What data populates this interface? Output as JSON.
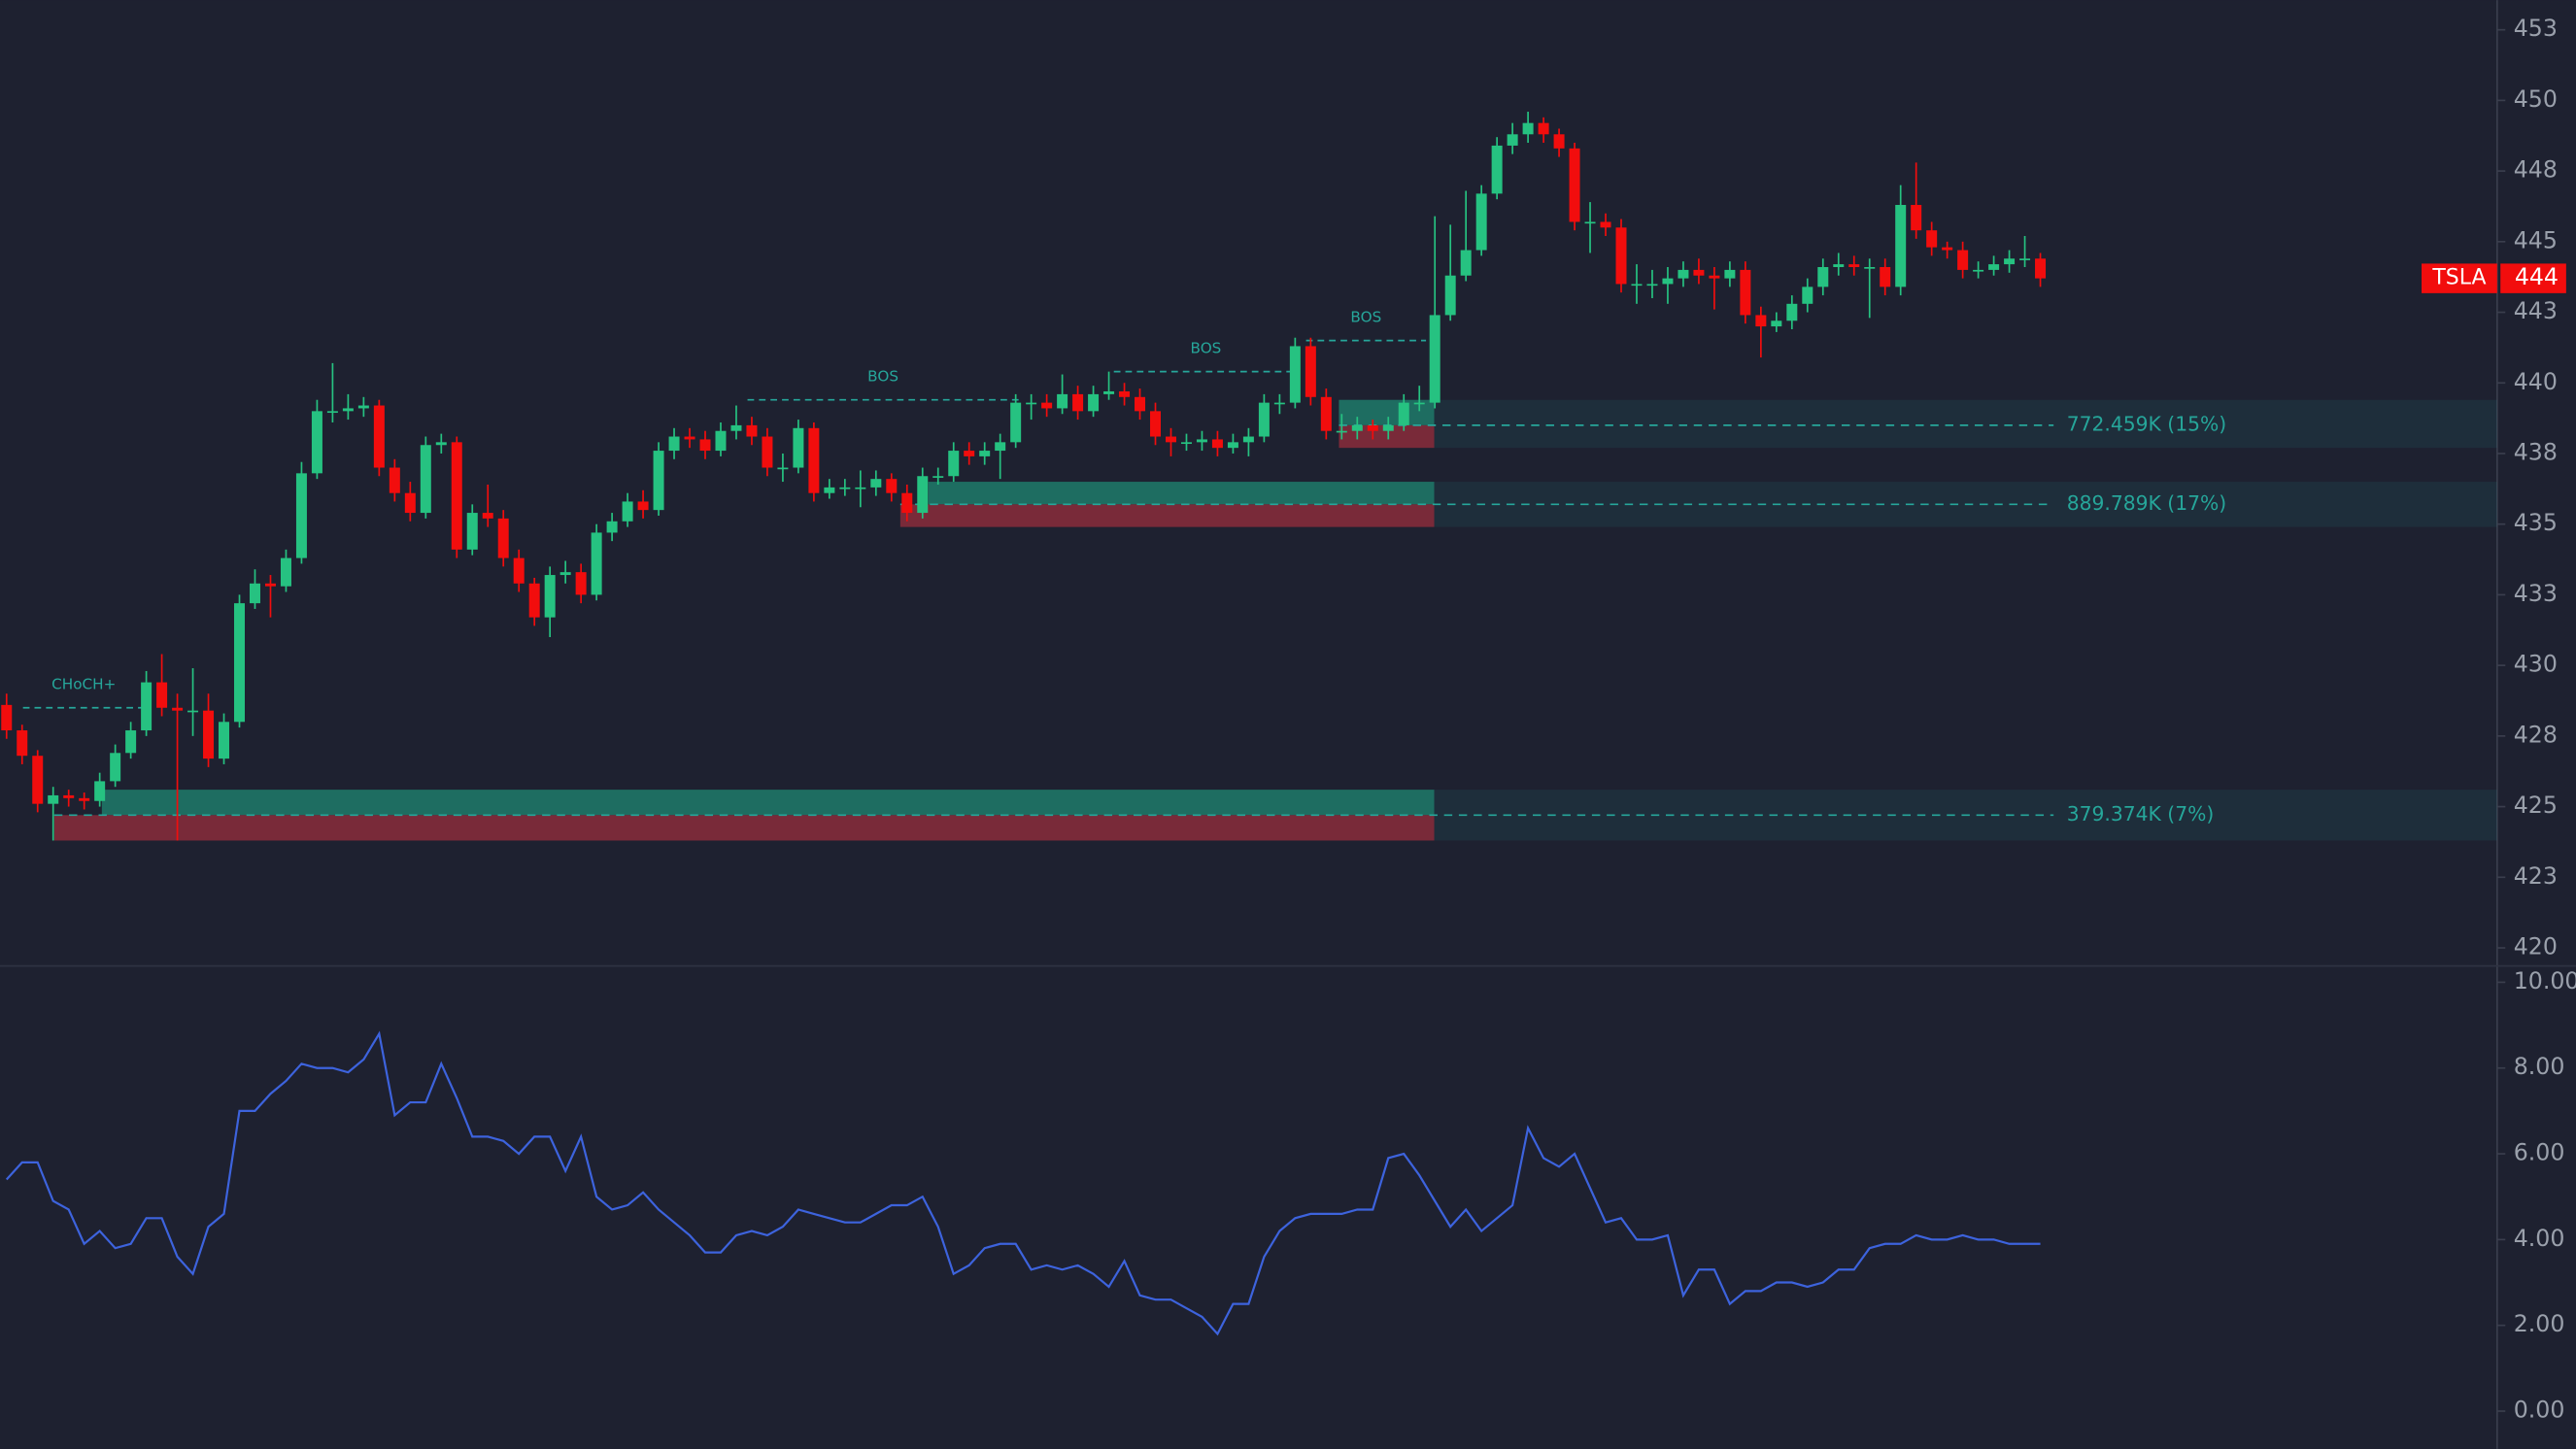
{
  "chart_data": {
    "type": "candlestick",
    "ticker": "TSLA",
    "last": {
      "value": 443.7,
      "label": "444"
    },
    "up_color": "#26c281",
    "down_color": "#f20d0d",
    "ylim": [
      419.36,
      453.55
    ],
    "yticks": [
      {
        "value": 452.5,
        "label": "453"
      },
      450,
      {
        "value": 447.5,
        "label": "448"
      },
      445,
      {
        "value": 442.5,
        "label": "443"
      },
      440,
      {
        "value": 437.5,
        "label": "438"
      },
      435,
      {
        "value": 432.5,
        "label": "433"
      },
      430,
      {
        "value": 427.5,
        "label": "428"
      },
      425,
      {
        "value": 422.5,
        "label": "423"
      },
      420
    ],
    "candles": [
      [
        428.6,
        429.0,
        427.4,
        427.7
      ],
      [
        427.7,
        427.9,
        426.5,
        426.8
      ],
      [
        426.8,
        427.0,
        424.8,
        425.1
      ],
      [
        425.1,
        425.7,
        423.8,
        425.4
      ],
      [
        425.4,
        425.6,
        425.0,
        425.3
      ],
      [
        425.3,
        425.5,
        424.9,
        425.2
      ],
      [
        425.2,
        426.2,
        425.0,
        425.9
      ],
      [
        425.9,
        427.2,
        425.7,
        426.9
      ],
      [
        426.9,
        428.0,
        426.7,
        427.7
      ],
      [
        427.7,
        429.8,
        427.5,
        429.4
      ],
      [
        429.4,
        430.4,
        428.2,
        428.5
      ],
      [
        428.5,
        429.0,
        423.8,
        428.4
      ],
      [
        428.4,
        429.9,
        427.5,
        428.4
      ],
      [
        428.4,
        429.0,
        426.4,
        426.7
      ],
      [
        426.7,
        428.3,
        426.5,
        428.0
      ],
      [
        428.0,
        432.5,
        427.8,
        432.2
      ],
      [
        432.2,
        433.4,
        432.0,
        432.9
      ],
      [
        432.9,
        433.2,
        431.7,
        432.8
      ],
      [
        432.8,
        434.1,
        432.6,
        433.8
      ],
      [
        433.8,
        437.2,
        433.6,
        436.8
      ],
      [
        436.8,
        439.4,
        436.6,
        439.0
      ],
      [
        439.0,
        440.7,
        438.6,
        439.0
      ],
      [
        439.0,
        439.6,
        438.7,
        439.1
      ],
      [
        439.1,
        439.5,
        438.8,
        439.2
      ],
      [
        439.2,
        439.4,
        436.7,
        437.0
      ],
      [
        437.0,
        437.3,
        435.8,
        436.1
      ],
      [
        436.1,
        436.5,
        435.1,
        435.4
      ],
      [
        435.4,
        438.1,
        435.2,
        437.8
      ],
      [
        437.8,
        438.2,
        437.5,
        437.9
      ],
      [
        437.9,
        438.1,
        433.8,
        434.1
      ],
      [
        434.1,
        435.7,
        433.9,
        435.4
      ],
      [
        435.4,
        436.4,
        434.9,
        435.2
      ],
      [
        435.2,
        435.5,
        433.5,
        433.8
      ],
      [
        433.8,
        434.1,
        432.6,
        432.9
      ],
      [
        432.9,
        433.1,
        431.4,
        431.7
      ],
      [
        431.7,
        433.5,
        431.0,
        433.2
      ],
      [
        433.2,
        433.7,
        432.9,
        433.3
      ],
      [
        433.3,
        433.6,
        432.2,
        432.5
      ],
      [
        432.5,
        435.0,
        432.3,
        434.7
      ],
      [
        434.7,
        435.4,
        434.4,
        435.1
      ],
      [
        435.1,
        436.1,
        434.9,
        435.8
      ],
      [
        435.8,
        436.2,
        435.2,
        435.5
      ],
      [
        435.5,
        437.9,
        435.3,
        437.6
      ],
      [
        437.6,
        438.4,
        437.3,
        438.1
      ],
      [
        438.1,
        438.4,
        437.7,
        438.0
      ],
      [
        438.0,
        438.3,
        437.3,
        437.6
      ],
      [
        437.6,
        438.6,
        437.4,
        438.3
      ],
      [
        438.3,
        439.2,
        438.0,
        438.5
      ],
      [
        438.5,
        438.8,
        437.8,
        438.1
      ],
      [
        438.1,
        438.4,
        436.7,
        437.0
      ],
      [
        437.0,
        437.5,
        436.5,
        437.0
      ],
      [
        437.0,
        438.7,
        436.8,
        438.4
      ],
      [
        438.4,
        438.6,
        435.8,
        436.1
      ],
      [
        436.1,
        436.6,
        435.9,
        436.3
      ],
      [
        436.3,
        436.6,
        436.0,
        436.3
      ],
      [
        436.3,
        436.9,
        435.6,
        436.3
      ],
      [
        436.3,
        436.9,
        436.0,
        436.6
      ],
      [
        436.6,
        436.8,
        435.8,
        436.1
      ],
      [
        436.1,
        436.4,
        435.1,
        435.4
      ],
      [
        435.4,
        437.0,
        435.2,
        436.7
      ],
      [
        436.7,
        437.0,
        436.4,
        436.7
      ],
      [
        436.7,
        437.9,
        436.5,
        437.6
      ],
      [
        437.6,
        437.9,
        437.1,
        437.4
      ],
      [
        437.4,
        437.9,
        437.1,
        437.6
      ],
      [
        437.6,
        438.2,
        436.6,
        437.9
      ],
      [
        437.9,
        439.6,
        437.7,
        439.3
      ],
      [
        439.3,
        439.6,
        438.7,
        439.3
      ],
      [
        439.3,
        439.6,
        438.8,
        439.1
      ],
      [
        439.1,
        440.3,
        438.9,
        439.6
      ],
      [
        439.6,
        439.9,
        438.7,
        439.0
      ],
      [
        439.0,
        439.9,
        438.8,
        439.6
      ],
      [
        439.6,
        440.4,
        439.4,
        439.7
      ],
      [
        439.7,
        440.0,
        439.2,
        439.5
      ],
      [
        439.5,
        439.8,
        438.7,
        439.0
      ],
      [
        439.0,
        439.3,
        437.8,
        438.1
      ],
      [
        438.1,
        438.4,
        437.4,
        437.9
      ],
      [
        437.9,
        438.2,
        437.6,
        437.9
      ],
      [
        437.9,
        438.3,
        437.6,
        438.0
      ],
      [
        438.0,
        438.3,
        437.4,
        437.7
      ],
      [
        437.7,
        438.2,
        437.5,
        437.9
      ],
      [
        437.9,
        438.4,
        437.4,
        438.1
      ],
      [
        438.1,
        439.6,
        437.9,
        439.3
      ],
      [
        439.3,
        439.6,
        438.9,
        439.3
      ],
      [
        439.3,
        441.6,
        439.1,
        441.3
      ],
      [
        441.3,
        441.6,
        439.2,
        439.5
      ],
      [
        439.5,
        439.8,
        438.0,
        438.3
      ],
      [
        438.3,
        438.9,
        438.0,
        438.3
      ],
      [
        438.3,
        438.8,
        438.0,
        438.5
      ],
      [
        438.5,
        438.7,
        438.0,
        438.3
      ],
      [
        438.3,
        438.8,
        438.0,
        438.5
      ],
      [
        438.5,
        439.6,
        438.3,
        439.3
      ],
      [
        439.3,
        439.9,
        439.0,
        439.3
      ],
      [
        439.3,
        445.9,
        439.1,
        442.4
      ],
      [
        442.4,
        445.6,
        442.2,
        443.8
      ],
      [
        443.8,
        446.8,
        443.6,
        444.7
      ],
      [
        444.7,
        447.0,
        444.5,
        446.7
      ],
      [
        446.7,
        448.7,
        446.5,
        448.4
      ],
      [
        448.4,
        449.2,
        448.1,
        448.8
      ],
      [
        448.8,
        449.6,
        448.5,
        449.2
      ],
      [
        449.2,
        449.4,
        448.5,
        448.8
      ],
      [
        448.8,
        449.0,
        448.0,
        448.3
      ],
      [
        448.3,
        448.5,
        445.4,
        445.7
      ],
      [
        445.7,
        446.4,
        444.6,
        445.7
      ],
      [
        445.7,
        446.0,
        445.2,
        445.5
      ],
      [
        445.5,
        445.8,
        443.2,
        443.5
      ],
      [
        443.5,
        444.2,
        442.8,
        443.5
      ],
      [
        443.5,
        444.0,
        443.0,
        443.5
      ],
      [
        443.5,
        444.1,
        442.8,
        443.7
      ],
      [
        443.7,
        444.3,
        443.4,
        444.0
      ],
      [
        444.0,
        444.4,
        443.5,
        443.8
      ],
      [
        443.8,
        444.1,
        442.6,
        443.7
      ],
      [
        443.7,
        444.3,
        443.4,
        444.0
      ],
      [
        444.0,
        444.3,
        442.1,
        442.4
      ],
      [
        442.4,
        442.7,
        440.9,
        442.0
      ],
      [
        442.0,
        442.5,
        441.8,
        442.2
      ],
      [
        442.2,
        443.1,
        441.9,
        442.8
      ],
      [
        442.8,
        443.7,
        442.5,
        443.4
      ],
      [
        443.4,
        444.4,
        443.1,
        444.1
      ],
      [
        444.1,
        444.6,
        443.8,
        444.2
      ],
      [
        444.2,
        444.5,
        443.8,
        444.1
      ],
      [
        444.1,
        444.4,
        442.3,
        444.1
      ],
      [
        444.1,
        444.4,
        443.1,
        443.4
      ],
      [
        443.4,
        447.0,
        443.1,
        446.3
      ],
      [
        446.3,
        447.8,
        445.1,
        445.4
      ],
      [
        445.4,
        445.7,
        444.5,
        444.8
      ],
      [
        444.8,
        445.0,
        444.4,
        444.7
      ],
      [
        444.7,
        445.0,
        443.7,
        444.0
      ],
      [
        444.0,
        444.3,
        443.7,
        444.0
      ],
      [
        444.0,
        444.5,
        443.8,
        444.2
      ],
      [
        444.2,
        444.7,
        443.9,
        444.4
      ],
      [
        444.4,
        445.2,
        444.1,
        444.4
      ],
      [
        444.4,
        444.6,
        443.4,
        443.7
      ]
    ],
    "zones": [
      {
        "label": "772.459K (15%)",
        "top": 439.4,
        "mid": 438.5,
        "bottom": 437.7
      },
      {
        "label": "889.789K (17%)",
        "top": 436.5,
        "mid": 435.7,
        "bottom": 434.9
      },
      {
        "label": "379.374K (7%)",
        "top": 425.6,
        "mid": 424.7,
        "bottom": 423.8
      }
    ],
    "structures": [
      {
        "label": "CHoCH+",
        "value": 428.5
      },
      {
        "label": "BOS",
        "value": 439.4
      },
      {
        "label": "BOS",
        "value": 440.4
      },
      {
        "label": "BOS",
        "value": 441.5
      }
    ],
    "indicator": {
      "type": "line",
      "color": "#3d63dd",
      "ylim": [
        -0.88,
        10.38
      ],
      "yticks": [
        {
          "value": 10,
          "label": "10.00"
        },
        {
          "value": 8,
          "label": "8.00"
        },
        {
          "value": 6,
          "label": "6.00"
        },
        {
          "value": 4,
          "label": "4.00"
        },
        {
          "value": 2,
          "label": "2.00"
        },
        {
          "value": 0,
          "label": "0.00"
        }
      ],
      "values": [
        5.4,
        5.8,
        5.8,
        4.9,
        4.7,
        3.9,
        4.2,
        3.8,
        3.9,
        4.5,
        4.5,
        3.6,
        3.2,
        4.3,
        4.6,
        7.0,
        7.0,
        7.4,
        7.7,
        8.1,
        8.0,
        8.0,
        7.9,
        8.2,
        8.8,
        6.9,
        7.2,
        7.2,
        8.1,
        7.3,
        6.4,
        6.4,
        6.3,
        6.0,
        6.4,
        6.4,
        5.6,
        6.4,
        5.0,
        4.7,
        4.8,
        5.1,
        4.7,
        4.4,
        4.1,
        3.7,
        3.7,
        4.1,
        4.2,
        4.1,
        4.3,
        4.7,
        4.6,
        4.5,
        4.4,
        4.4,
        4.6,
        4.8,
        4.8,
        5.0,
        4.3,
        3.2,
        3.4,
        3.8,
        3.9,
        3.9,
        3.3,
        3.4,
        3.3,
        3.4,
        3.2,
        2.9,
        3.5,
        2.7,
        2.6,
        2.6,
        2.4,
        2.2,
        1.8,
        2.5,
        2.5,
        3.6,
        4.2,
        4.5,
        4.6,
        4.6,
        4.6,
        4.7,
        4.7,
        5.9,
        6.0,
        5.5,
        4.9,
        4.3,
        4.7,
        4.2,
        4.5,
        4.8,
        6.6,
        5.9,
        5.7,
        6.0,
        5.2,
        4.4,
        4.5,
        4.0,
        4.0,
        4.1,
        2.7,
        3.3,
        3.3,
        2.5,
        2.8,
        2.8,
        3.0,
        3.0,
        2.9,
        3.0,
        3.3,
        3.3,
        3.8,
        3.9,
        3.9,
        4.1,
        4.0,
        4.0,
        4.1,
        4.0,
        4.0,
        3.9,
        3.9,
        3.9
      ]
    }
  }
}
